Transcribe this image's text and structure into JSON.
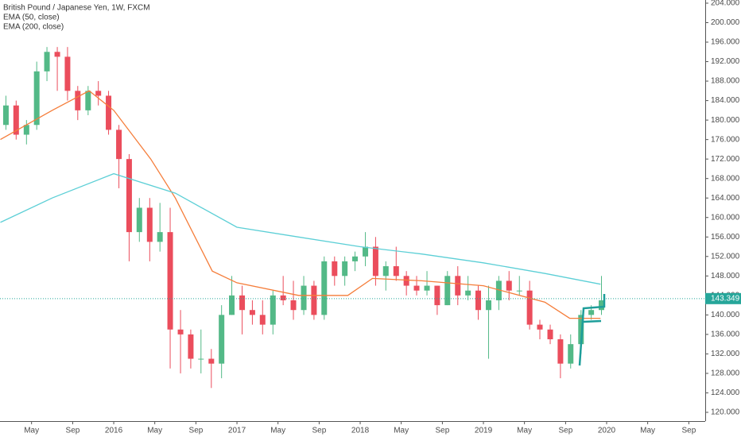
{
  "chart_data": {
    "type": "candlestick",
    "title": "British Pound / Japanese Yen, 1W, FXCM",
    "x": [
      2015.125,
      2015.208,
      2015.292,
      2015.375,
      2015.458,
      2015.542,
      2015.625,
      2015.708,
      2015.792,
      2015.875,
      2015.958,
      2016.042,
      2016.125,
      2016.208,
      2016.292,
      2016.375,
      2016.458,
      2016.542,
      2016.625,
      2016.708,
      2016.792,
      2016.875,
      2016.958,
      2017.042,
      2017.125,
      2017.208,
      2017.292,
      2017.375,
      2017.458,
      2017.542,
      2017.625,
      2017.708,
      2017.792,
      2017.875,
      2017.958,
      2018.042,
      2018.125,
      2018.208,
      2018.292,
      2018.375,
      2018.458,
      2018.542,
      2018.625,
      2018.708,
      2018.792,
      2018.875,
      2018.958,
      2019.042,
      2019.125,
      2019.208,
      2019.292,
      2019.375,
      2019.458,
      2019.542,
      2019.625,
      2019.708,
      2019.792,
      2019.875,
      2019.958
    ],
    "open": [
      179,
      183,
      177,
      179,
      190,
      194,
      193,
      186,
      182,
      186,
      185,
      178,
      172,
      157,
      162,
      155,
      157,
      137,
      136,
      131,
      131,
      130,
      140,
      144,
      141,
      140,
      138,
      144,
      143,
      141,
      146,
      140,
      151,
      148,
      151,
      152,
      154,
      148,
      150,
      148,
      146,
      145,
      146,
      142,
      148,
      144,
      145,
      141,
      143,
      147,
      145,
      145,
      138,
      137,
      135,
      130,
      134,
      140,
      141
    ],
    "high": [
      185,
      184,
      180,
      192,
      195,
      195,
      195,
      187,
      187,
      188,
      186,
      179,
      173,
      164,
      164,
      163,
      162,
      141,
      137,
      137,
      133,
      142,
      148,
      146,
      143,
      143,
      145,
      148,
      147,
      148,
      147,
      152,
      152,
      152,
      153,
      157,
      156,
      151,
      154,
      149,
      148,
      149,
      146,
      149,
      150,
      148,
      146,
      146,
      148,
      149,
      148,
      147,
      139,
      138,
      136,
      136,
      141,
      142,
      148
    ],
    "low": [
      178,
      176,
      175,
      178,
      188,
      186,
      184,
      180,
      181,
      183,
      177,
      166,
      151,
      155,
      151,
      153,
      129,
      128,
      129,
      128,
      125,
      127,
      140,
      136,
      138,
      136,
      136,
      142,
      139,
      140,
      139,
      139,
      146,
      146,
      149,
      150,
      146,
      145,
      147,
      144,
      144,
      144,
      140,
      142,
      142,
      143,
      139,
      131,
      141,
      143,
      144,
      137,
      135,
      134,
      127,
      129,
      132,
      139,
      140
    ],
    "close": [
      183,
      177,
      179,
      190,
      194,
      193,
      186,
      182,
      186,
      185,
      178,
      172,
      157,
      162,
      155,
      157,
      137,
      136,
      131,
      131,
      130,
      140,
      144,
      141,
      140,
      138,
      144,
      143,
      141,
      146,
      140,
      151,
      148,
      151,
      152,
      154,
      148,
      150,
      148,
      146,
      145,
      146,
      142,
      148,
      144,
      145,
      141,
      143,
      147,
      145,
      145,
      138,
      137,
      135,
      130,
      134,
      140,
      141,
      143
    ],
    "up_color": "#53b987",
    "down_color": "#eb4d5c",
    "series": [
      {
        "name": "EMA (50, close)",
        "color": "#f57d3a",
        "x": [
          2015.08,
          2015.5,
          2015.8,
          2016.0,
          2016.3,
          2016.5,
          2016.8,
          2017.0,
          2017.5,
          2017.9,
          2018.1,
          2018.5,
          2019.0,
          2019.5,
          2019.7,
          2019.95
        ],
        "values": [
          176,
          182,
          186,
          182,
          172,
          164,
          149,
          146.6,
          144,
          144,
          147.5,
          147,
          146,
          142.6,
          139.3,
          139.3
        ]
      },
      {
        "name": "EMA (200, close)",
        "color": "#5ccfd6",
        "x": [
          2015.08,
          2015.5,
          2016.0,
          2016.5,
          2017.0,
          2017.5,
          2018.0,
          2018.5,
          2019.0,
          2019.5,
          2019.95
        ],
        "values": [
          159,
          164,
          169,
          165,
          158,
          156,
          154,
          152.5,
          150.7,
          148.5,
          146.3
        ]
      }
    ],
    "last_price": 143.349,
    "xlim": [
      2015.077,
      2020.8
    ],
    "ylim": [
      118.2,
      204.65
    ],
    "xticks": [
      {
        "value": 2015.333,
        "label": "May"
      },
      {
        "value": 2015.667,
        "label": "Sep"
      },
      2016,
      {
        "value": 2016.333,
        "label": "May"
      },
      {
        "value": 2016.667,
        "label": "Sep"
      },
      2017,
      {
        "value": 2017.333,
        "label": "May"
      },
      {
        "value": 2017.667,
        "label": "Sep"
      },
      2018,
      {
        "value": 2018.333,
        "label": "May"
      },
      {
        "value": 2018.667,
        "label": "Sep"
      },
      2019,
      {
        "value": 2019.333,
        "label": "May"
      },
      {
        "value": 2019.667,
        "label": "Sep"
      },
      2020,
      {
        "value": 2020.333,
        "label": "May"
      },
      {
        "value": 2020.667,
        "label": "Sep"
      }
    ],
    "yticks": [
      {
        "value": 120,
        "label": "120.000"
      },
      {
        "value": 124,
        "label": "124.000"
      },
      {
        "value": 128,
        "label": "128.000"
      },
      {
        "value": 132,
        "label": "132.000"
      },
      {
        "value": 136,
        "label": "136.000"
      },
      {
        "value": 140,
        "label": "140.000"
      },
      {
        "value": 144,
        "label": "144.000"
      },
      {
        "value": 148,
        "label": "148.000"
      },
      {
        "value": 152,
        "label": "152.000"
      },
      {
        "value": 156,
        "label": "156.000"
      },
      {
        "value": 160,
        "label": "160.000"
      },
      {
        "value": 164,
        "label": "164.000"
      },
      {
        "value": 168,
        "label": "168.000"
      },
      {
        "value": 172,
        "label": "172.000"
      },
      {
        "value": 176,
        "label": "176.000"
      },
      {
        "value": 180,
        "label": "180.000"
      },
      {
        "value": 184,
        "label": "184.000"
      },
      {
        "value": 188,
        "label": "188.000"
      },
      {
        "value": 192,
        "label": "192.000"
      },
      {
        "value": 196,
        "label": "196.000"
      },
      {
        "value": 200,
        "label": "200.000"
      },
      {
        "value": 204,
        "label": "204.000"
      }
    ],
    "grid": false
  }
}
